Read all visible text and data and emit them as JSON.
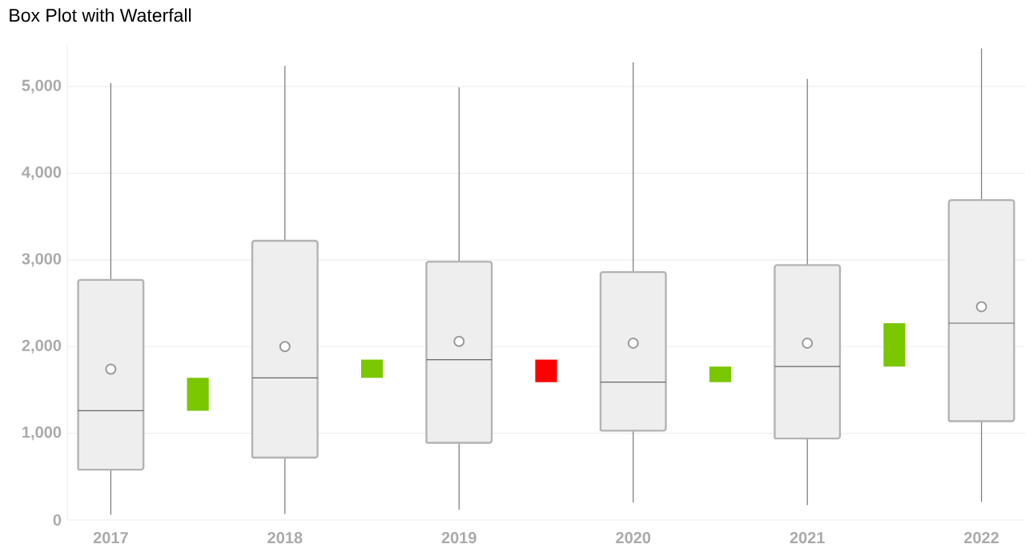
{
  "chart_data": {
    "type": "box",
    "title": "Box Plot with Waterfall",
    "categories": [
      "2017",
      null,
      "2018",
      null,
      "2019",
      null,
      "2020",
      null,
      "2021",
      null,
      "2022"
    ],
    "series": [
      {
        "color": "#eeeeee",
        "boxes": [
          {
            "low": 60,
            "q1": 580,
            "median": 1260,
            "q3": 2770,
            "high": 5040,
            "mean": 1740
          },
          null,
          {
            "low": 70,
            "q1": 720,
            "median": 1640,
            "q3": 3220,
            "high": 5240,
            "mean": 2000
          },
          null,
          {
            "low": 120,
            "q1": 890,
            "median": 1850,
            "q3": 2980,
            "high": 4990,
            "mean": 2060
          },
          null,
          {
            "low": 200,
            "q1": 1030,
            "median": 1590,
            "q3": 2860,
            "high": 5280,
            "mean": 2040
          },
          null,
          {
            "low": 170,
            "q1": 940,
            "median": 1770,
            "q3": 2940,
            "high": 5090,
            "mean": 2040
          },
          null,
          {
            "low": 210,
            "q1": 1140,
            "median": 2270,
            "q3": 3690,
            "high": 5440,
            "mean": 2460
          }
        ]
      },
      {
        "type": "bar",
        "base": [
          null,
          1260,
          null,
          1640,
          null,
          1850,
          null,
          1590,
          null,
          1770,
          null
        ],
        "values": [
          null,
          380,
          null,
          210,
          null,
          -260,
          null,
          180,
          null,
          500,
          null
        ],
        "colors": [
          null,
          "#7ac700",
          null,
          "#7ac700",
          null,
          "#ff0000",
          null,
          "#7ac700",
          null,
          "#7ac700",
          null
        ]
      }
    ],
    "ylim": [
      0,
      5500
    ],
    "yticks": [
      0,
      {
        "value": 1000,
        "label": "1,000"
      },
      {
        "value": 2000,
        "label": "2,000"
      },
      {
        "value": 3000,
        "label": "3,000"
      },
      {
        "value": 4000,
        "label": "4,000"
      },
      {
        "value": 5000,
        "label": "5,000"
      }
    ],
    "grid": "y"
  }
}
